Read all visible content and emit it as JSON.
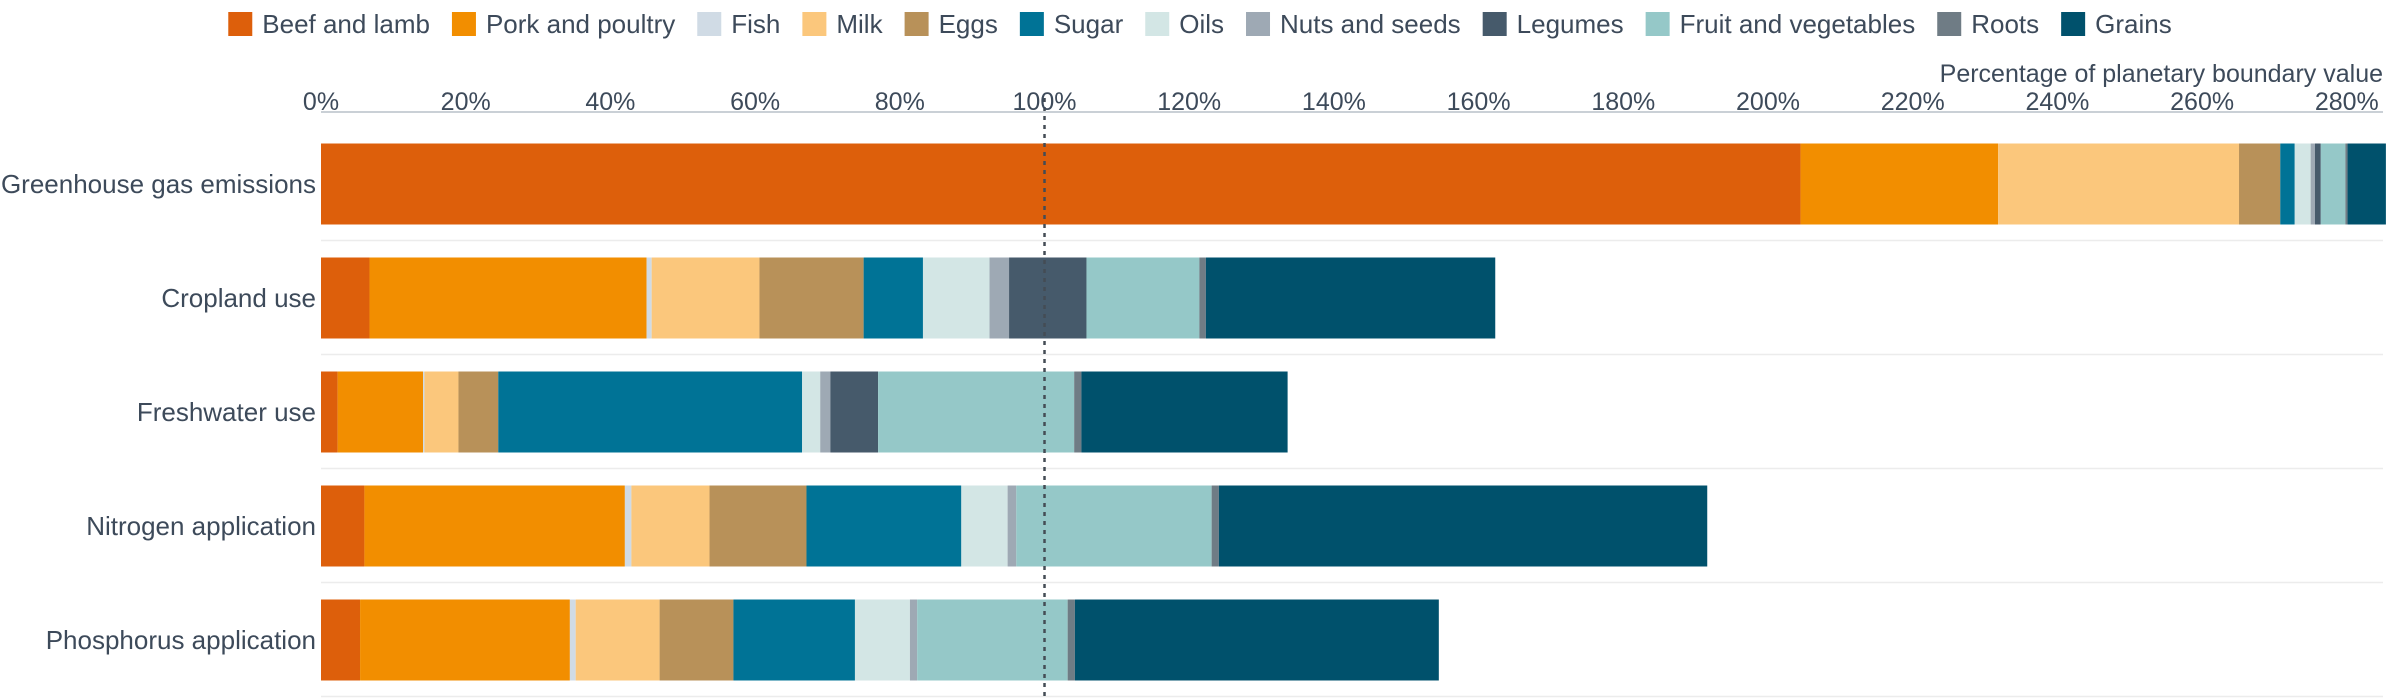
{
  "chart_data": {
    "type": "bar",
    "orientation": "horizontal",
    "stacked": true,
    "title": "",
    "xlabel": "Percentage of planetary boundary value",
    "ylabel": "",
    "xlim": [
      0,
      285
    ],
    "x_ticks": [
      0,
      20,
      40,
      60,
      80,
      100,
      120,
      140,
      160,
      180,
      200,
      220,
      240,
      260,
      280
    ],
    "x_tick_labels": [
      "0%",
      "20%",
      "40%",
      "60%",
      "80%",
      "100%",
      "120%",
      "140%",
      "160%",
      "180%",
      "200%",
      "220%",
      "240%",
      "260%",
      "280%"
    ],
    "reference_line": {
      "value": 100,
      "style": "dotted"
    },
    "legend_position": "top",
    "grid": "horizontal",
    "categories": [
      "Greenhouse gas emissions",
      "Cropland use",
      "Freshwater use",
      "Nitrogen application",
      "Phosphorus application"
    ],
    "series": [
      {
        "name": "Beef and lamb",
        "color": "#dd5f0b",
        "values": [
          204.5,
          6.7,
          2.3,
          6.0,
          5.4
        ]
      },
      {
        "name": "Pork and poultry",
        "color": "#f28e00",
        "values": [
          27.3,
          38.3,
          11.8,
          36.0,
          29.0
        ]
      },
      {
        "name": "Fish",
        "color": "#d0dbe5",
        "values": [
          0.0,
          0.7,
          0.2,
          0.9,
          0.8
        ]
      },
      {
        "name": "Milk",
        "color": "#fbc77c",
        "values": [
          33.3,
          14.9,
          4.7,
          10.8,
          11.6
        ]
      },
      {
        "name": "Eggs",
        "color": "#b89159",
        "values": [
          5.7,
          14.4,
          5.5,
          13.4,
          10.2
        ]
      },
      {
        "name": "Sugar",
        "color": "#007396",
        "values": [
          2.0,
          8.2,
          42.0,
          21.4,
          16.8
        ]
      },
      {
        "name": "Oils",
        "color": "#d3e6e5",
        "values": [
          2.2,
          9.2,
          2.5,
          6.4,
          7.6
        ]
      },
      {
        "name": "Nuts and seeds",
        "color": "#9ea9b4",
        "values": [
          0.6,
          2.7,
          1.4,
          1.2,
          1.0
        ]
      },
      {
        "name": "Legumes",
        "color": "#465a6b",
        "values": [
          0.8,
          10.7,
          6.6,
          0.0,
          0.0
        ]
      },
      {
        "name": "Fruit and vegetables",
        "color": "#95c8c8",
        "values": [
          3.4,
          15.6,
          27.1,
          27.0,
          20.8
        ]
      },
      {
        "name": "Roots",
        "color": "#6f7c85",
        "values": [
          0.3,
          0.9,
          1.0,
          1.0,
          1.0
        ]
      },
      {
        "name": "Grains",
        "color": "#00516c",
        "values": [
          5.3,
          40.0,
          28.5,
          67.5,
          50.3
        ]
      }
    ]
  }
}
